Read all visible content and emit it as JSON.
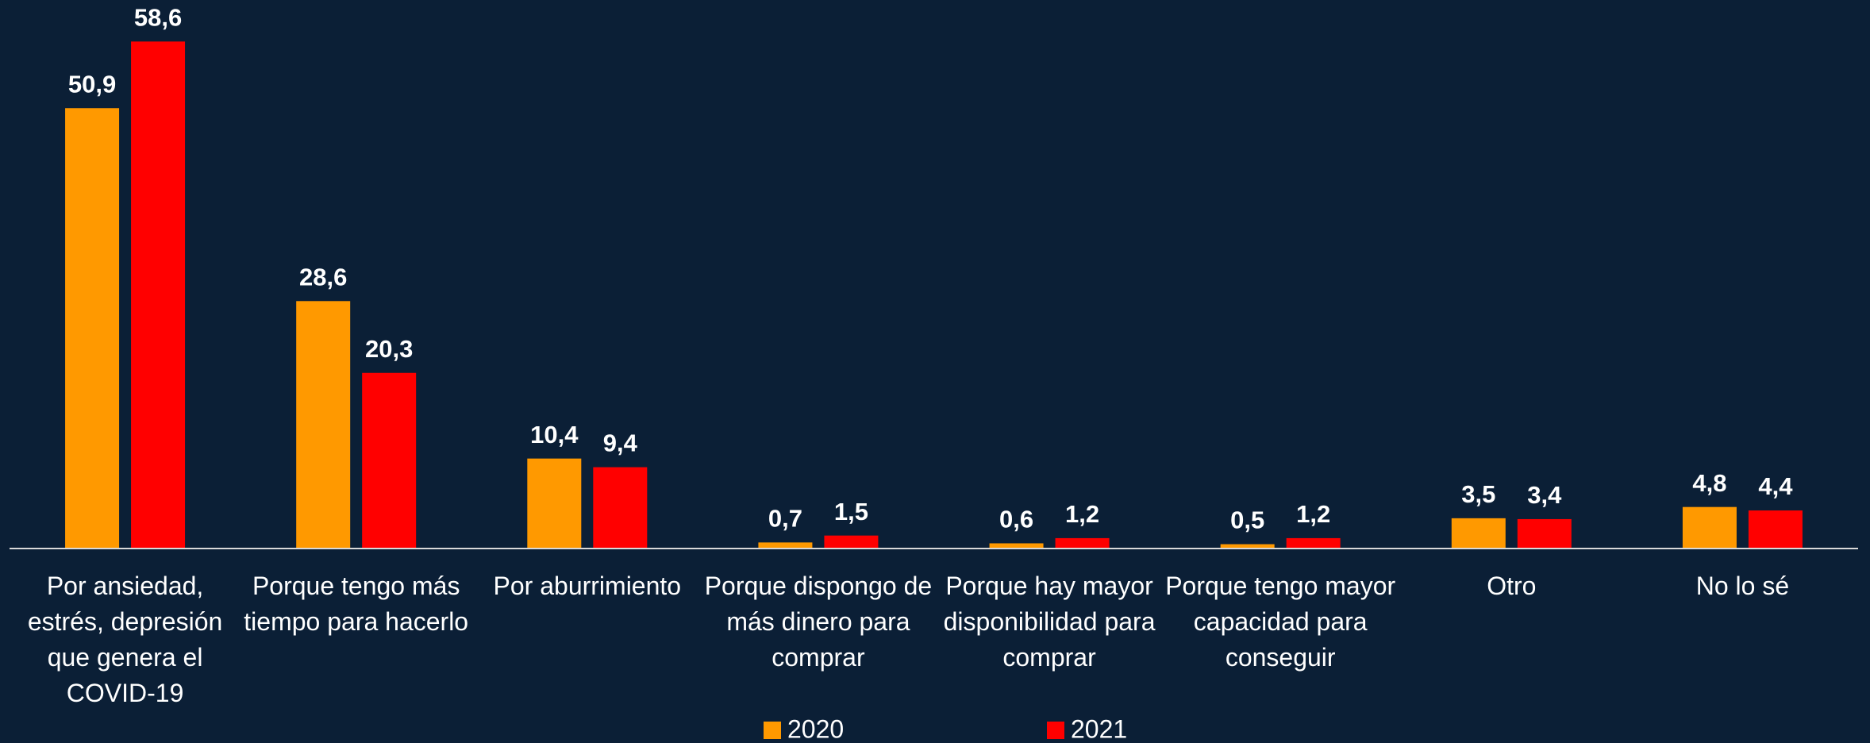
{
  "chart_data": {
    "type": "bar",
    "categories": [
      "Por ansiedad, estrés, depresión que genera el COVID-19",
      "Porque tengo más tiempo para hacerlo",
      "Por aburrimiento",
      "Porque dispongo de más dinero para comprar",
      "Porque hay mayor disponibilidad para comprar",
      "Porque tengo mayor capacidad para conseguir",
      "Otro",
      "No lo sé"
    ],
    "series": [
      {
        "name": "2020",
        "color": "#ff9900",
        "values": [
          50.9,
          28.6,
          10.4,
          0.7,
          0.6,
          0.5,
          3.5,
          4.8
        ],
        "value_labels": [
          "50,9",
          "28,6",
          "10,4",
          "0,7",
          "0,6",
          "0,5",
          "3,5",
          "4,8"
        ]
      },
      {
        "name": "2021",
        "color": "#ff0000",
        "values": [
          58.6,
          20.3,
          9.4,
          1.5,
          1.2,
          1.2,
          3.4,
          4.4
        ],
        "value_labels": [
          "58,6",
          "20,3",
          "9,4",
          "1,5",
          "1,2",
          "1,2",
          "3,4",
          "4,4"
        ]
      }
    ],
    "ylim": [
      0,
      63.4
    ],
    "legend": "bottom"
  }
}
